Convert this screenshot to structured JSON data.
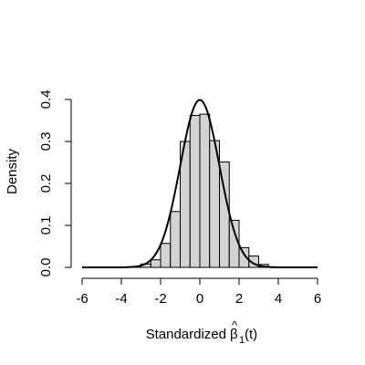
{
  "chart_data": {
    "type": "bar",
    "title": "",
    "xlabel": "Standardized",
    "xlabel_math": {
      "base": "β",
      "subscript": "1",
      "suffix": "(t)",
      "hat": true
    },
    "ylabel": "Density",
    "xlim": [
      -6,
      6
    ],
    "ylim": [
      0,
      0.4
    ],
    "x_ticks": [
      "-6",
      "-4",
      "-2",
      "0",
      "2",
      "4",
      "6"
    ],
    "y_ticks": [
      "0.0",
      "0.1",
      "0.2",
      "0.3",
      "0.4"
    ],
    "grid": false,
    "bin_width": 0.5,
    "bins": [
      {
        "x0": -3.5,
        "x1": -3.0,
        "density": 0.002
      },
      {
        "x0": -3.0,
        "x1": -2.5,
        "density": 0.008
      },
      {
        "x0": -2.5,
        "x1": -2.0,
        "density": 0.018
      },
      {
        "x0": -2.0,
        "x1": -1.5,
        "density": 0.057
      },
      {
        "x0": -1.5,
        "x1": -1.0,
        "density": 0.133
      },
      {
        "x0": -1.0,
        "x1": -0.5,
        "density": 0.3
      },
      {
        "x0": -0.5,
        "x1": 0.0,
        "density": 0.362
      },
      {
        "x0": 0.0,
        "x1": 0.5,
        "density": 0.365
      },
      {
        "x0": 0.5,
        "x1": 1.0,
        "density": 0.302
      },
      {
        "x0": 1.0,
        "x1": 1.5,
        "density": 0.251
      },
      {
        "x0": 1.5,
        "x1": 2.0,
        "density": 0.112
      },
      {
        "x0": 2.0,
        "x1": 2.5,
        "density": 0.047
      },
      {
        "x0": 2.5,
        "x1": 3.0,
        "density": 0.027
      },
      {
        "x0": 3.0,
        "x1": 3.5,
        "density": 0.007
      }
    ],
    "density_curve": {
      "type": "normal",
      "mean": 0,
      "sd": 1
    },
    "colors": {
      "bar_fill": "#d3d3d3",
      "bar_stroke": "#000000",
      "curve": "#000000",
      "axis": "#000000"
    }
  }
}
